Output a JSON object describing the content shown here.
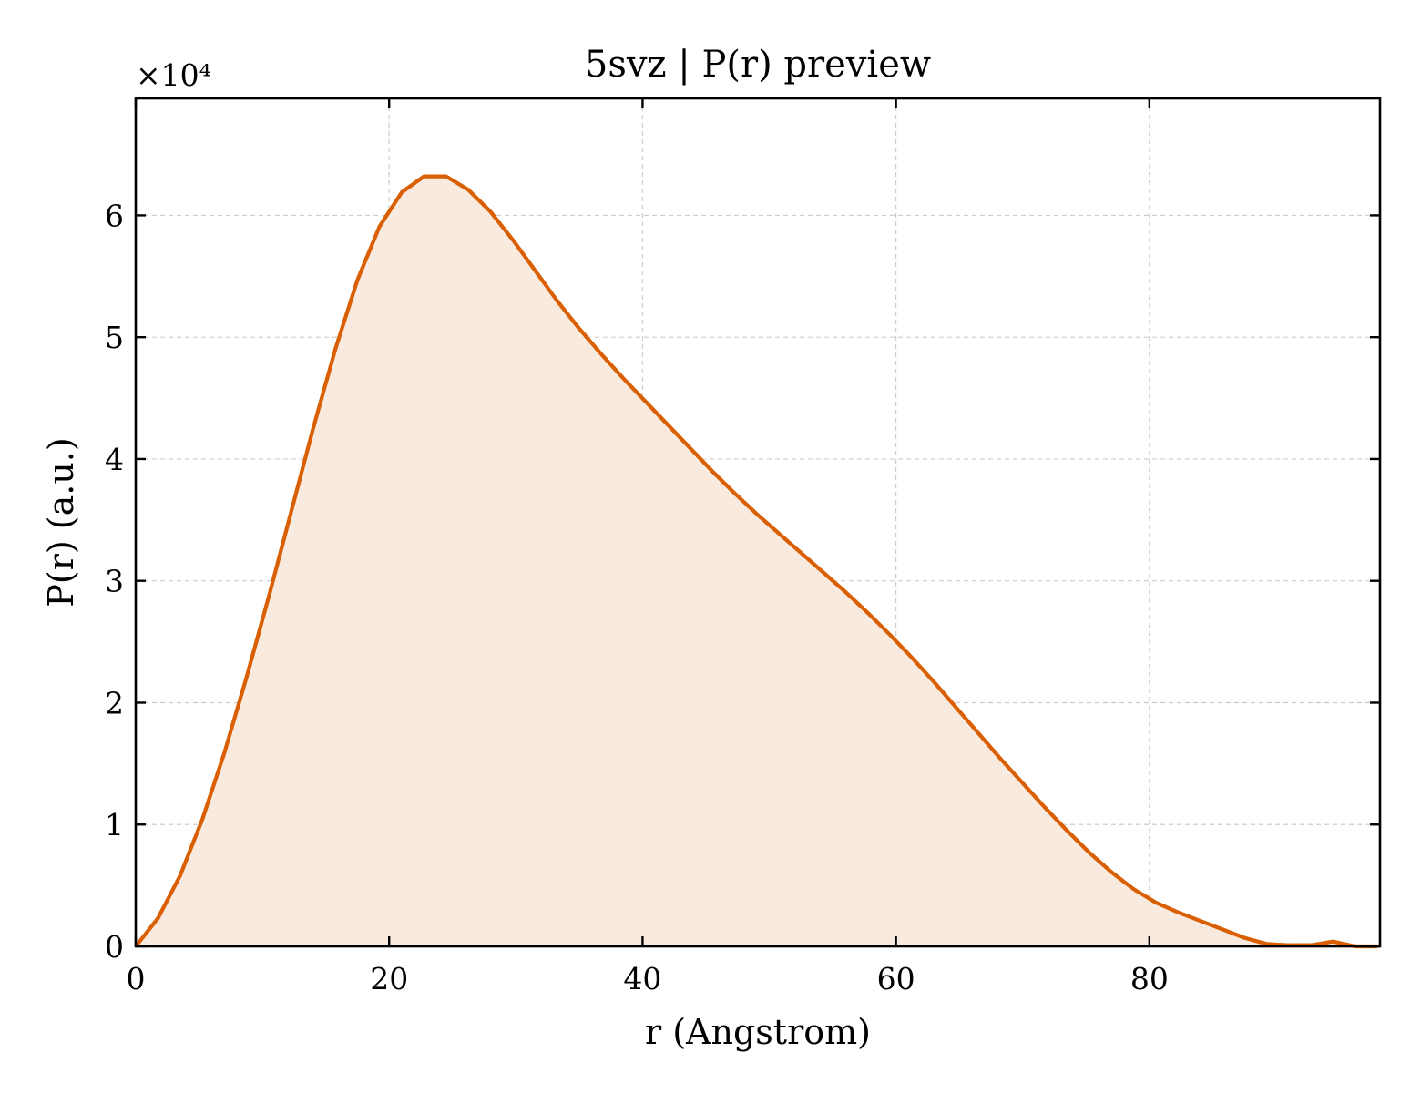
{
  "chart_data": {
    "type": "area",
    "title": "5svz | P(r) preview",
    "xlabel": "r (Angstrom)",
    "ylabel": "P(r) (a.u.)",
    "y_multiplier_label": "×10⁴",
    "xlim": [
      0,
      98.2
    ],
    "ylim": [
      0,
      69600
    ],
    "xticks": [
      0,
      20,
      40,
      60,
      80
    ],
    "yticks": [
      0,
      10000,
      20000,
      30000,
      40000,
      50000,
      60000
    ],
    "yticklabels": [
      "0",
      "1",
      "2",
      "3",
      "4",
      "5",
      "6"
    ],
    "grid": true,
    "line_color": "#d95f02",
    "fill_color": "#f9eae0",
    "series": [
      {
        "x": [
          0,
          1.75,
          3.5,
          5.25,
          7.0,
          8.75,
          10.5,
          12.25,
          14.0,
          15.75,
          17.5,
          19.25,
          21.0,
          22.75,
          24.5,
          26.25,
          28.0,
          29.75,
          31.5,
          33.25,
          35.0,
          36.75,
          38.5,
          40.25,
          42.0,
          43.75,
          45.5,
          47.25,
          49.0,
          50.75,
          52.5,
          54.25,
          56.0,
          57.75,
          59.5,
          61.25,
          63.0,
          64.75,
          66.5,
          68.25,
          70.0,
          71.75,
          73.5,
          75.25,
          77.0,
          78.75,
          80.5,
          82.25,
          84.0,
          85.75,
          87.5,
          89.25,
          91.0,
          92.75,
          94.5,
          96.25,
          98.0
        ],
        "y": [
          0,
          2300,
          5800,
          10400,
          15900,
          22100,
          28700,
          35600,
          42500,
          49000,
          54700,
          59100,
          61900,
          63200,
          63200,
          62100,
          60300,
          58000,
          55500,
          53000,
          50700,
          48600,
          46600,
          44700,
          42800,
          40900,
          39000,
          37200,
          35500,
          33900,
          32300,
          30700,
          29100,
          27400,
          25600,
          23700,
          21700,
          19600,
          17500,
          15400,
          13400,
          11400,
          9500,
          7700,
          6100,
          4700,
          3600,
          2800,
          2100,
          1400,
          700,
          200,
          100,
          100,
          400,
          0,
          0
        ]
      }
    ]
  }
}
